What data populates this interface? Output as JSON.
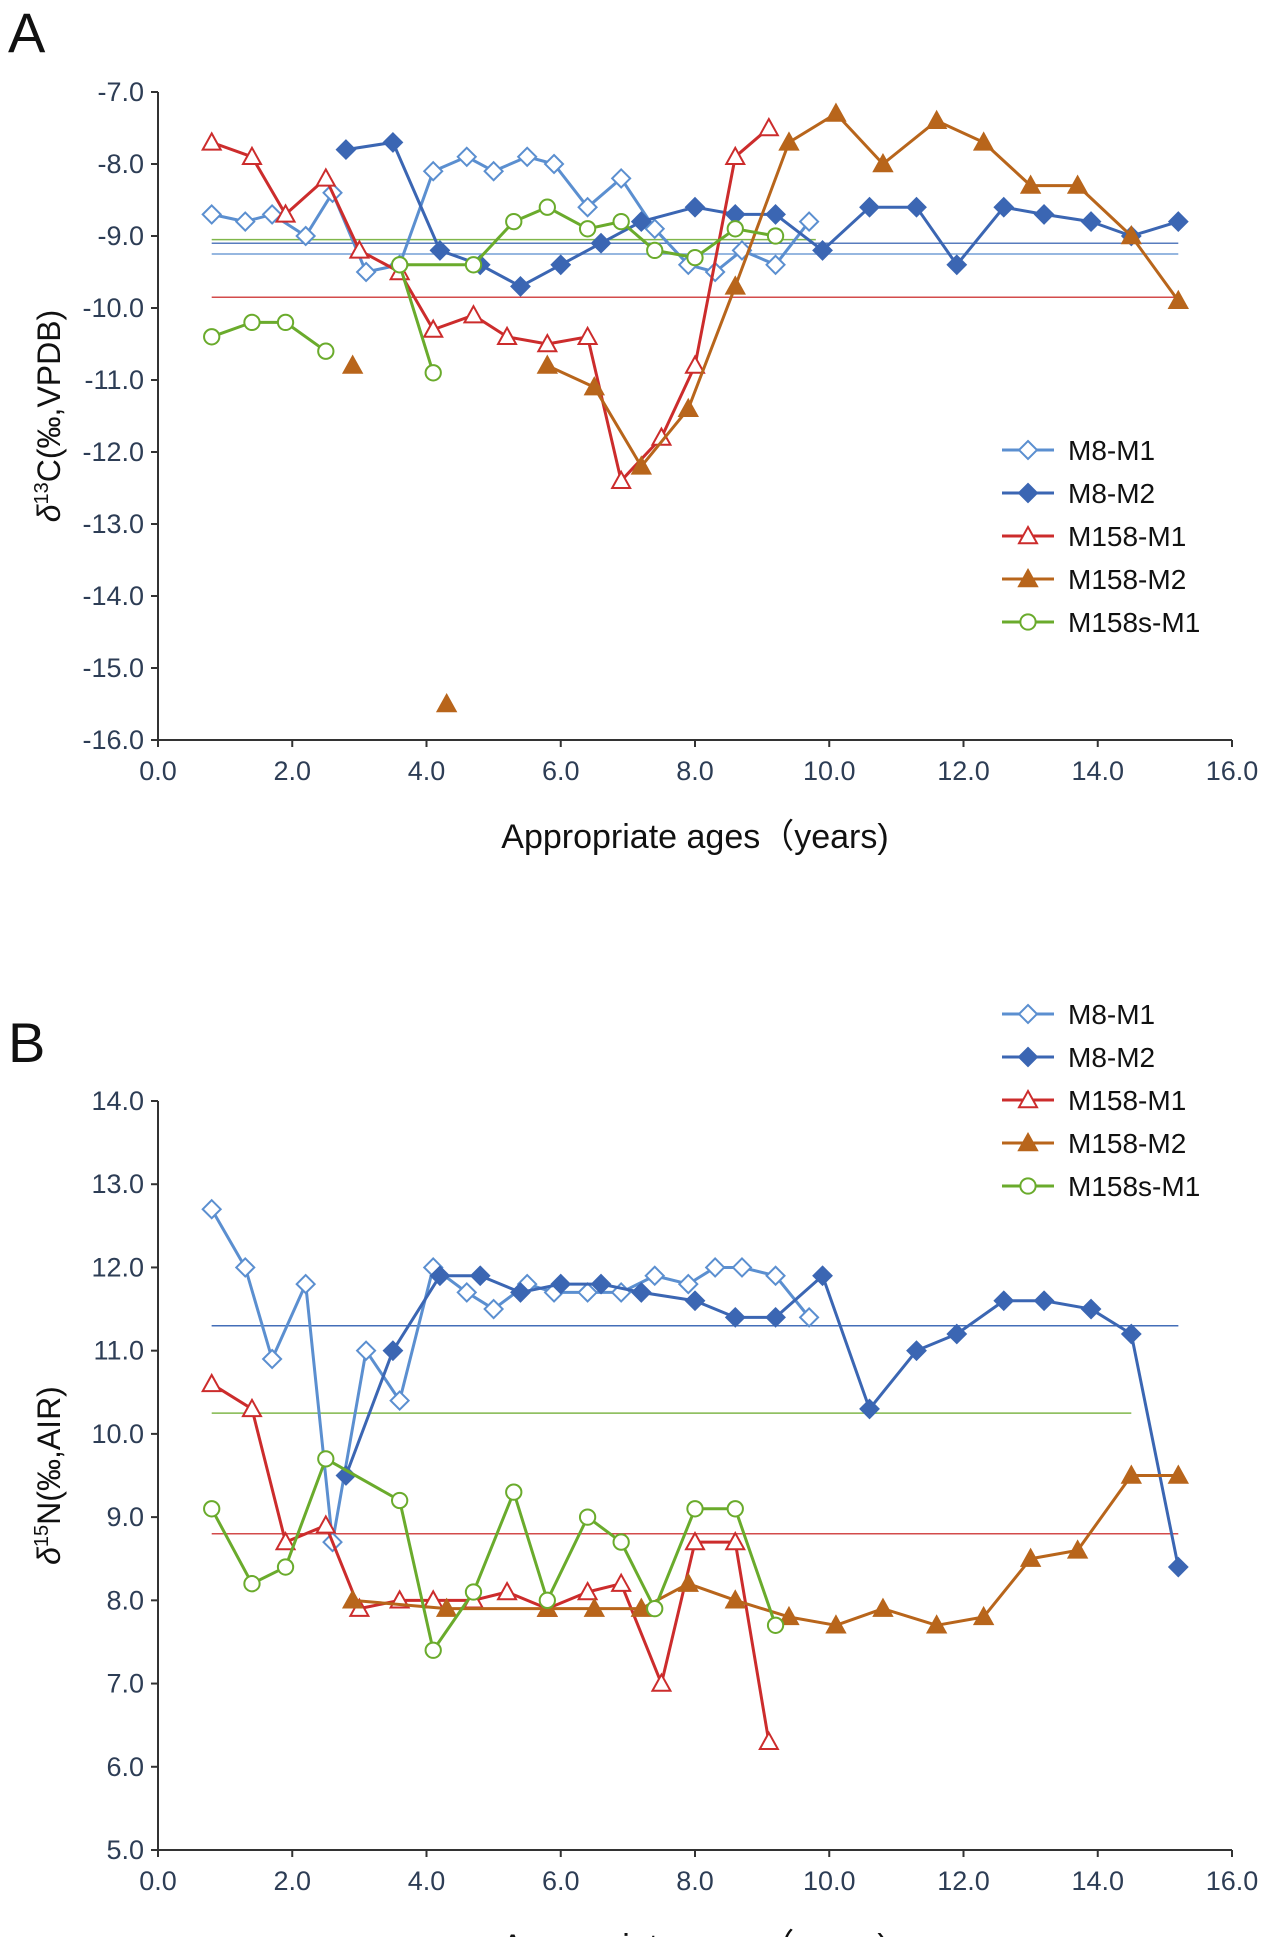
{
  "panels": [
    {
      "label": "A"
    },
    {
      "label": "B"
    }
  ],
  "chart_data": [
    {
      "type": "line",
      "xlabel": "Appropriate ages（years)",
      "ylabel": "δ13C(‰, VPDB)",
      "ylabel_parts": {
        "delta": "δ",
        "sup": "13",
        "rest": "C(‰,VPDB)"
      },
      "xlim": [
        0,
        16
      ],
      "ylim": [
        -16,
        -7
      ],
      "xticks": [
        "0.0",
        "2.0",
        "4.0",
        "6.0",
        "8.0",
        "10.0",
        "12.0",
        "14.0",
        "16.0"
      ],
      "yticks": [
        "-7.0",
        "-8.0",
        "-9.0",
        "-10.0",
        "-11.0",
        "-12.0",
        "-13.0",
        "-14.0",
        "-15.0",
        "-16.0"
      ],
      "grid": false,
      "legend_position": "right",
      "series": [
        {
          "name": "M8-M1",
          "color": "#5b8fd0",
          "marker": "diamond-open",
          "x": [
            0.8,
            1.3,
            1.7,
            2.2,
            2.6,
            3.1,
            3.6,
            4.1,
            4.6,
            5.0,
            5.5,
            5.9,
            6.4,
            6.9,
            7.4,
            7.9,
            8.3,
            8.7,
            9.2,
            9.7
          ],
          "y": [
            -8.7,
            -8.8,
            -8.7,
            -9.0,
            -8.4,
            -9.5,
            -9.4,
            -8.1,
            -7.9,
            -8.1,
            -7.9,
            -8.0,
            -8.6,
            -8.2,
            -8.9,
            -9.4,
            -9.5,
            -9.2,
            -9.4,
            -8.8
          ],
          "mean": -9.25,
          "mean_x": [
            0.8,
            15.2
          ]
        },
        {
          "name": "M8-M2",
          "color": "#3b66b3",
          "marker": "diamond-filled",
          "x": [
            2.8,
            3.5,
            4.2,
            4.8,
            5.4,
            6.0,
            6.6,
            7.2,
            8.0,
            8.6,
            9.2,
            9.9,
            10.6,
            11.3,
            11.9,
            12.6,
            13.2,
            13.9,
            14.5,
            15.2
          ],
          "y": [
            -7.8,
            -7.7,
            -9.2,
            -9.4,
            -9.7,
            -9.4,
            -9.1,
            -8.8,
            -8.6,
            -8.7,
            -8.7,
            -9.2,
            -8.6,
            -8.6,
            -9.4,
            -8.6,
            -8.7,
            -8.8,
            -9.0,
            -8.8
          ],
          "mean": -9.1,
          "mean_x": [
            0.8,
            15.2
          ]
        },
        {
          "name": "M158-M1",
          "color": "#cc2c2c",
          "marker": "triangle-open",
          "x": [
            0.8,
            1.4,
            1.9,
            2.5,
            3.0,
            3.6,
            4.1,
            4.7,
            5.2,
            5.8,
            6.4,
            6.9,
            7.5,
            8.0,
            8.6,
            9.1
          ],
          "y": [
            -7.7,
            -7.9,
            -8.7,
            -8.2,
            -9.2,
            -9.5,
            -10.3,
            -10.1,
            -10.4,
            -10.5,
            -10.4,
            -12.4,
            -11.8,
            -10.8,
            -7.9,
            -7.5
          ],
          "mean": -9.85,
          "mean_x": [
            0.8,
            15.2
          ]
        },
        {
          "name": "M158-M2",
          "color": "#b8651b",
          "marker": "triangle-filled",
          "x": [
            2.9,
            4.3,
            5.8,
            6.5,
            7.2,
            7.9,
            8.6,
            9.4,
            10.1,
            10.8,
            11.6,
            12.3,
            13.0,
            13.7,
            14.5,
            15.2
          ],
          "y": [
            -10.8,
            -15.5,
            -10.8,
            -11.1,
            -12.2,
            -11.4,
            -9.7,
            -7.7,
            -7.3,
            -8.0,
            -7.4,
            -7.7,
            -8.3,
            -8.3,
            -9.0,
            -9.9
          ],
          "segments": [
            [
              2,
              15
            ]
          ],
          "mean": null
        },
        {
          "name": "M158s-M1",
          "color": "#6aab2c",
          "marker": "circle-open",
          "x": [
            0.8,
            1.4,
            1.9,
            2.5,
            4.1,
            3.6,
            4.7,
            5.3,
            5.8,
            6.4,
            6.9,
            7.4,
            8.0,
            8.6,
            9.2
          ],
          "y": [
            -10.4,
            -10.2,
            -10.2,
            -10.6,
            -10.9,
            -9.4,
            -9.4,
            -8.8,
            -8.6,
            -8.9,
            -8.8,
            -9.2,
            -9.3,
            -8.9,
            -9.0
          ],
          "segments": [
            [
              0,
              3
            ],
            [
              4,
              14
            ]
          ],
          "mean": -9.05,
          "mean_x": [
            0.8,
            9.8
          ]
        }
      ]
    },
    {
      "type": "line",
      "xlabel": "Appropriate ages（years)",
      "ylabel": "δ15N(‰,AIR)",
      "ylabel_parts": {
        "delta": "δ",
        "sup": "15",
        "rest": "N(‰,AIR)"
      },
      "xlim": [
        0,
        16
      ],
      "ylim": [
        5,
        14
      ],
      "xticks": [
        "0.0",
        "2.0",
        "4.0",
        "6.0",
        "8.0",
        "10.0",
        "12.0",
        "14.0",
        "16.0"
      ],
      "yticks": [
        "14.0",
        "13.0",
        "12.0",
        "11.0",
        "10.0",
        "9.0",
        "8.0",
        "7.0",
        "6.0",
        "5.0"
      ],
      "grid": false,
      "legend_position": "top-right",
      "series": [
        {
          "name": "M8-M1",
          "color": "#5b8fd0",
          "marker": "diamond-open",
          "x": [
            0.8,
            1.3,
            1.7,
            2.2,
            2.6,
            3.1,
            3.6,
            4.1,
            4.6,
            5.0,
            5.5,
            5.9,
            6.4,
            6.9,
            7.4,
            7.9,
            8.3,
            8.7,
            9.2,
            9.7
          ],
          "y": [
            12.7,
            12.0,
            10.9,
            11.8,
            8.7,
            11.0,
            10.4,
            12.0,
            11.7,
            11.5,
            11.8,
            11.7,
            11.7,
            11.7,
            11.9,
            11.8,
            12.0,
            12.0,
            11.9,
            11.4
          ],
          "mean": 11.3,
          "mean_x": [
            0.8,
            15.2
          ]
        },
        {
          "name": "M8-M2",
          "color": "#3b66b3",
          "marker": "diamond-filled",
          "x": [
            2.8,
            3.5,
            4.2,
            4.8,
            5.4,
            6.0,
            6.6,
            7.2,
            8.0,
            8.6,
            9.2,
            9.9,
            10.6,
            11.3,
            11.9,
            12.6,
            13.2,
            13.9,
            14.5,
            15.2
          ],
          "y": [
            9.5,
            11.0,
            11.9,
            11.9,
            11.7,
            11.8,
            11.8,
            11.7,
            11.6,
            11.4,
            11.4,
            11.9,
            10.3,
            11.0,
            11.2,
            11.6,
            11.6,
            11.5,
            11.2,
            8.4
          ],
          "mean": 11.3,
          "mean_x": [
            0.8,
            15.2
          ]
        },
        {
          "name": "M158-M1",
          "color": "#cc2c2c",
          "marker": "triangle-open",
          "x": [
            0.8,
            1.4,
            1.9,
            2.5,
            3.0,
            3.6,
            4.1,
            4.7,
            5.2,
            5.8,
            6.4,
            6.9,
            7.5,
            8.0,
            8.6,
            9.1
          ],
          "y": [
            10.6,
            10.3,
            8.7,
            8.9,
            7.9,
            8.0,
            8.0,
            8.0,
            8.1,
            7.9,
            8.1,
            8.2,
            7.0,
            8.7,
            8.7,
            6.3
          ],
          "mean": 8.8,
          "mean_x": [
            0.8,
            15.2
          ]
        },
        {
          "name": "M158-M2",
          "color": "#b8651b",
          "marker": "triangle-filled",
          "x": [
            2.9,
            4.3,
            5.8,
            6.5,
            7.2,
            7.9,
            8.6,
            9.4,
            10.1,
            10.8,
            11.6,
            12.3,
            13.0,
            13.7,
            14.5,
            15.2
          ],
          "y": [
            8.0,
            7.9,
            7.9,
            7.9,
            7.9,
            8.2,
            8.0,
            7.8,
            7.7,
            7.9,
            7.7,
            7.8,
            8.5,
            8.6,
            9.5,
            9.5
          ],
          "mean": null
        },
        {
          "name": "M158s-M1",
          "color": "#6aab2c",
          "marker": "circle-open",
          "x": [
            0.8,
            1.4,
            1.9,
            2.5,
            3.6,
            4.1,
            4.7,
            5.3,
            5.8,
            6.4,
            6.9,
            7.4,
            8.0,
            8.6,
            9.2
          ],
          "y": [
            9.1,
            8.2,
            8.4,
            9.7,
            9.2,
            7.4,
            8.1,
            9.3,
            8.0,
            9.0,
            8.7,
            7.9,
            9.1,
            9.1,
            7.7
          ],
          "mean": 10.25,
          "mean_x": [
            0.8,
            14.5
          ]
        }
      ]
    }
  ]
}
